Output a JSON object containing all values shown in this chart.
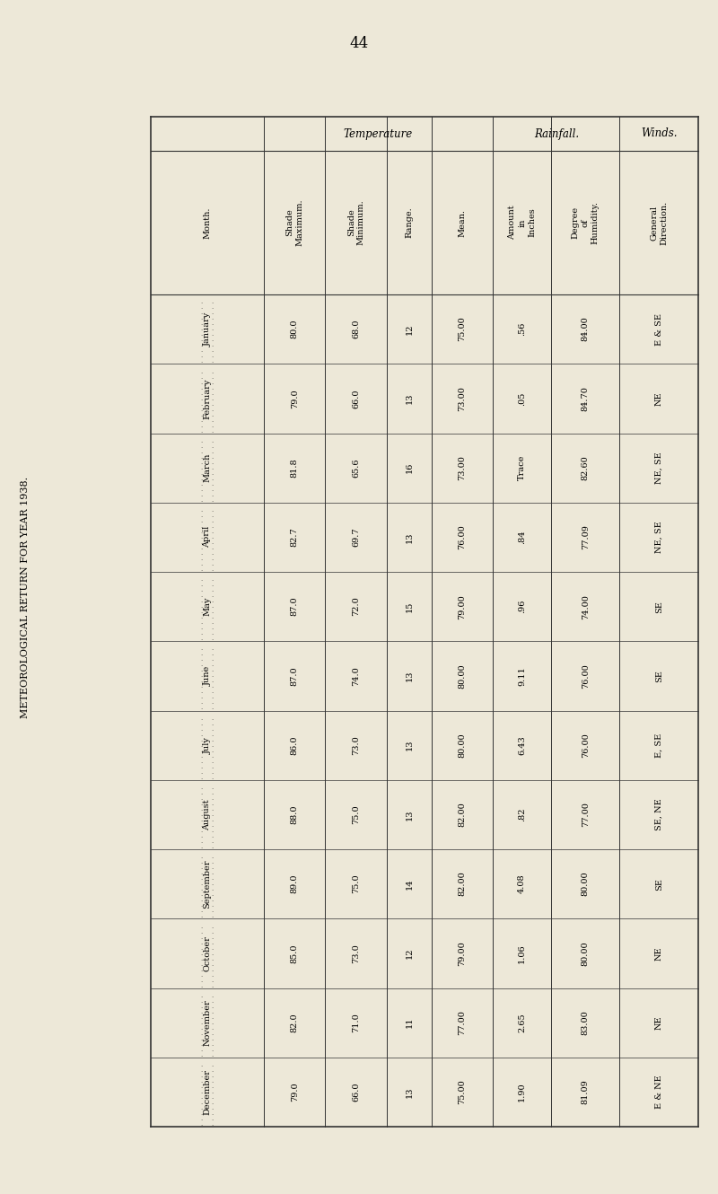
{
  "title": "METEOROLOGICAL RETURN FOR YEAR 1938.",
  "page_number": "44",
  "bg_color": "#ede8d8",
  "months": [
    "January",
    "February",
    "March",
    "April",
    "May",
    "June",
    "July",
    "August",
    "September",
    "October",
    "November",
    "December"
  ],
  "shade_max": [
    "80.0",
    "79.0",
    "81.8",
    "82.7",
    "87.0",
    "87.0",
    "86.0",
    "88.0",
    "89.0",
    "85.0",
    "82.0",
    "79.0"
  ],
  "shade_min": [
    "68.0",
    "66.0",
    "65.6",
    "69.7",
    "72.0",
    "74.0",
    "73.0",
    "75.0",
    "75.0",
    "73.0",
    "71.0",
    "66.0"
  ],
  "range_vals": [
    "12",
    "13",
    "16",
    "13",
    "15",
    "13",
    "13",
    "13",
    "14",
    "12",
    "11",
    "13"
  ],
  "mean_vals": [
    "75.00",
    "73.00",
    "73.00",
    "76.00",
    "79.00",
    "80.00",
    "80.00",
    "82.00",
    "82.00",
    "79.00",
    "77.00",
    "75.00"
  ],
  "amount_inches": [
    ".56",
    ".05",
    "Trace",
    ".84",
    ".96",
    "9.11",
    "6.43",
    ".82",
    "4.08",
    "1.06",
    "2.65",
    "1.90"
  ],
  "degree_humidity": [
    "84.00",
    "84.70",
    "82.60",
    "77.09",
    "74.00",
    "76.00",
    "76.00",
    "77.00",
    "80.00",
    "80.00",
    "83.00",
    "81.09"
  ],
  "wind_direction": [
    "E & SE",
    "NE",
    "NE, SE",
    "NE, SE",
    "SE",
    "SE",
    "E, SE",
    "SE, NE",
    "SE",
    "NE",
    "NE",
    "E & NE"
  ],
  "col_group_headers": [
    "",
    "Temperature",
    "Rainfall.",
    "Winds."
  ],
  "col_headers": [
    "Month.",
    "Shade\nMaximum.",
    "Shade\nMinimum.",
    "Range.",
    "Mean.",
    "Amount\nin\nInches",
    "Degree\nof\nHumidity.",
    "General\nDirection."
  ],
  "temp_col_span": [
    1,
    4
  ],
  "rainfall_col_span": [
    5,
    6
  ],
  "winds_col_span": [
    7,
    7
  ]
}
